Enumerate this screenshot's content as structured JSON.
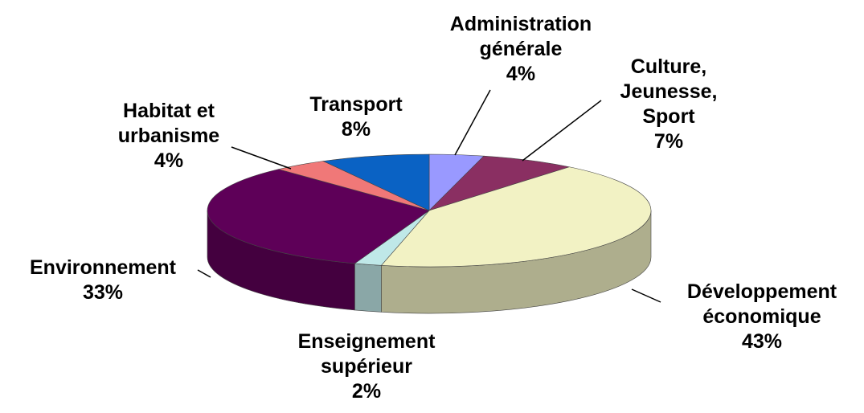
{
  "chart_data": {
    "type": "pie3d",
    "categories": [
      "Administration\ngénérale",
      "Culture,\nJeunesse,\nSport",
      "Développement\néconomique",
      "Enseignement\nsupérieur",
      "Environnement",
      "Habitat et\nurbanisme",
      "Transport"
    ],
    "values": [
      4,
      7,
      43,
      2,
      33,
      4,
      8
    ],
    "value_labels": [
      "4%",
      "7%",
      "43%",
      "2%",
      "33%",
      "4%",
      "8%"
    ],
    "colors": [
      "#9999ff",
      "#8a2f62",
      "#f2f2c4",
      "#bfe8e8",
      "#5e0058",
      "#f07878",
      "#0a62c4"
    ]
  }
}
